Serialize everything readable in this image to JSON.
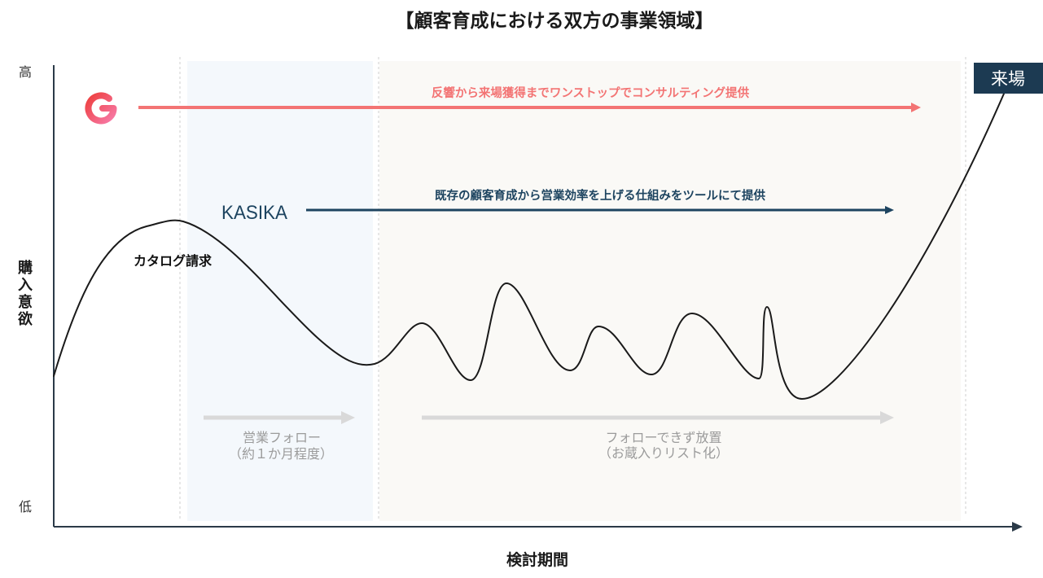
{
  "title": "【顧客育成における双方の事業領域】",
  "y_axis": {
    "label": "購入意欲",
    "high": "高",
    "low": "低"
  },
  "x_axis": {
    "label": "検討期間"
  },
  "goal": {
    "label": "来場",
    "color": "#1c3a52"
  },
  "services": [
    {
      "logo_icon": "g-logo-icon",
      "description": "反響から来場獲得までワンストップでコンサルティング提供",
      "color": "#f37474"
    },
    {
      "logo_text": "KASIKA",
      "description": "既存の顧客育成から営業効率を上げる仕組みをツールにて提供",
      "color": "#1d4460"
    }
  ],
  "curve": {
    "annotation": "カタログ請求"
  },
  "phases": [
    {
      "label": "営業フォロー",
      "note": "（約１か月程度）",
      "region_color": "#f4f8fc"
    },
    {
      "label": "フォローできず放置",
      "note": "（お蔵入りリスト化）",
      "region_color": "#faf9f6"
    }
  ],
  "colors": {
    "axis": "#2b3a48",
    "curve": "#1a1a1a",
    "phase_arrow": "#d9d9d9",
    "phase_text": "#9b9b9b",
    "divider": "#cfcfcf"
  }
}
